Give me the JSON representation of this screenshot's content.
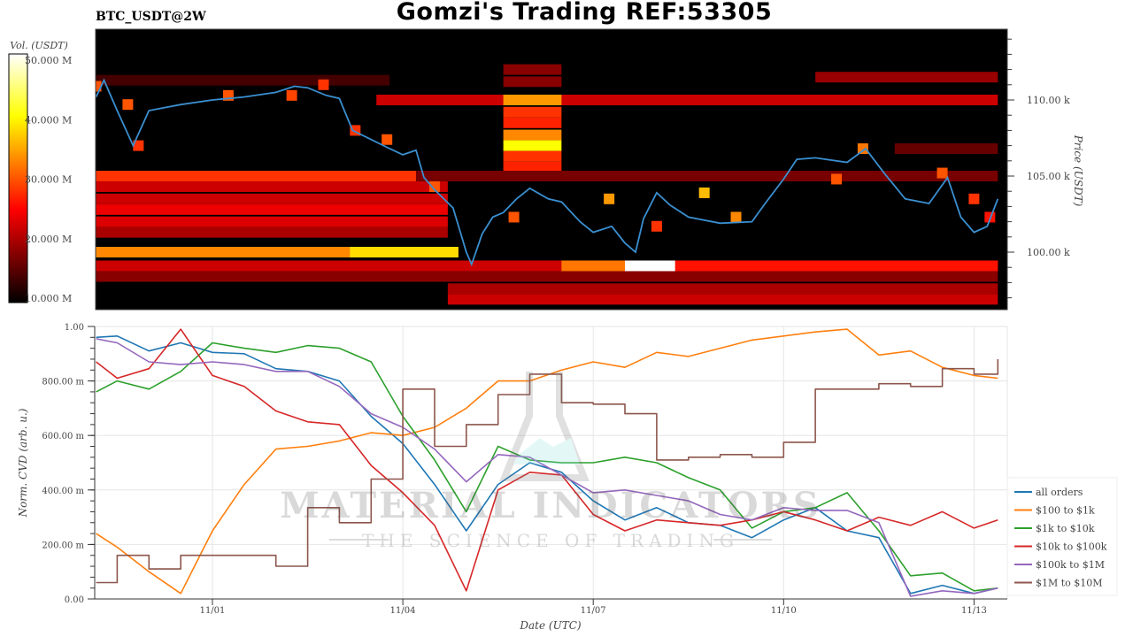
{
  "header": {
    "title": "Gomzi's Trading REF:53305",
    "subtitle": "BTC_USDT@2W"
  },
  "watermark": {
    "line1": "MATERIAL INDICATORS",
    "line2": "THE SCIENCE OF TRADING"
  },
  "chart_data": [
    {
      "type": "heatmap",
      "title": "BTC_USDT@2W",
      "ylabel": "Price (USDT)",
      "yticks": [
        "100.00 k",
        "105.00 k",
        "110.00 k"
      ],
      "ytick_values": [
        100,
        105,
        110
      ],
      "ylim": [
        96.2,
        114.6
      ],
      "colorbar": {
        "label": "Vol. (USDT)",
        "ticks": [
          "10.000 M",
          "20.000 M",
          "30.000 M",
          "40.000 M",
          "50.000 M"
        ],
        "tick_values": [
          10,
          20,
          30,
          40,
          50
        ],
        "range": [
          10,
          50
        ],
        "colormap": "hot"
      },
      "price_line": {
        "color": "#3a8fd0",
        "points": [
          [
            "10/30 04",
            110.2
          ],
          [
            "10/30 07",
            111.3
          ],
          [
            "10/30 12",
            109.3
          ],
          [
            "10/30 18",
            107.0
          ],
          [
            "10/31 00",
            109.3
          ],
          [
            "10/31 12",
            109.7
          ],
          [
            "11/01 00",
            110.0
          ],
          [
            "11/01 12",
            110.2
          ],
          [
            "11/02 00",
            110.5
          ],
          [
            "11/02 07",
            110.9
          ],
          [
            "11/02 12",
            110.8
          ],
          [
            "11/02 19",
            110.3
          ],
          [
            "11/03 00",
            110.1
          ],
          [
            "11/03 05",
            108.0
          ],
          [
            "11/03 12",
            107.4
          ],
          [
            "11/03 19",
            106.8
          ],
          [
            "11/04 00",
            106.4
          ],
          [
            "11/04 05",
            106.7
          ],
          [
            "11/04 08",
            104.9
          ],
          [
            "11/04 12",
            104.1
          ],
          [
            "11/04 19",
            102.9
          ],
          [
            "11/05 00",
            100.0
          ],
          [
            "11/05 02",
            99.2
          ],
          [
            "11/05 06",
            101.2
          ],
          [
            "11/05 10",
            102.3
          ],
          [
            "11/05 14",
            102.6
          ],
          [
            "11/05 19",
            103.5
          ],
          [
            "11/06 00",
            104.2
          ],
          [
            "11/06 07",
            103.5
          ],
          [
            "11/06 12",
            103.3
          ],
          [
            "11/06 19",
            102.0
          ],
          [
            "11/07 00",
            101.3
          ],
          [
            "11/07 07",
            101.7
          ],
          [
            "11/07 12",
            100.6
          ],
          [
            "11/07 16",
            100.0
          ],
          [
            "11/07 19",
            102.2
          ],
          [
            "11/08 00",
            103.9
          ],
          [
            "11/08 05",
            103.1
          ],
          [
            "11/08 12",
            102.3
          ],
          [
            "11/09 00",
            101.9
          ],
          [
            "11/09 12",
            102.0
          ],
          [
            "11/09 17",
            103.2
          ],
          [
            "11/10 00",
            104.8
          ],
          [
            "11/10 05",
            106.1
          ],
          [
            "11/10 12",
            106.2
          ],
          [
            "11/11 00",
            105.9
          ],
          [
            "11/11 07",
            106.8
          ],
          [
            "11/11 14",
            105.2
          ],
          [
            "11/11 22",
            103.5
          ],
          [
            "11/12 07",
            103.2
          ],
          [
            "11/12 14",
            104.9
          ],
          [
            "11/12 19",
            102.3
          ],
          [
            "11/13 00",
            101.3
          ],
          [
            "11/13 05",
            101.7
          ],
          [
            "11/13 09",
            103.5
          ]
        ]
      },
      "bands": [
        [
          111.3,
          "10/30 04",
          "11/03 19",
          14
        ],
        [
          110.0,
          "11/03 14",
          "11/13 09",
          22
        ],
        [
          110.0,
          "11/05 14",
          "11/06 12",
          34
        ],
        [
          112.0,
          "11/05 14",
          "11/06 12",
          18
        ],
        [
          111.2,
          "11/05 14",
          "11/06 12",
          18
        ],
        [
          109.2,
          "11/05 14",
          "11/06 12",
          28
        ],
        [
          108.5,
          "11/05 14",
          "11/06 12",
          27
        ],
        [
          107.7,
          "11/05 14",
          "11/06 12",
          33
        ],
        [
          107.0,
          "11/05 14",
          "11/06 12",
          40
        ],
        [
          106.3,
          "11/05 14",
          "11/06 12",
          28
        ],
        [
          105.6,
          "11/05 14",
          "11/06 12",
          27
        ],
        [
          105.0,
          "10/30 04",
          "11/04 05",
          28
        ],
        [
          105.0,
          "11/04 05",
          "11/13 09",
          17
        ],
        [
          104.3,
          "10/30 04",
          "11/04 17",
          22
        ],
        [
          103.5,
          "10/30 04",
          "11/04 17",
          22
        ],
        [
          102.8,
          "10/30 04",
          "11/04 17",
          24
        ],
        [
          102.0,
          "10/30 04",
          "11/04 17",
          23
        ],
        [
          101.3,
          "10/30 04",
          "11/04 17",
          20
        ],
        [
          100.0,
          "10/30 04",
          "11/04 21",
          33
        ],
        [
          100.0,
          "11/03 04",
          "11/04 21",
          38
        ],
        [
          99.1,
          "10/30 04",
          "11/13 09",
          22
        ],
        [
          99.1,
          "11/06 12",
          "11/07 12",
          32
        ],
        [
          99.1,
          "11/07 12",
          "11/08 07",
          52
        ],
        [
          99.1,
          "11/08 07",
          "11/13 09",
          26
        ],
        [
          98.4,
          "10/30 04",
          "11/13 09",
          18
        ],
        [
          97.6,
          "11/04 17",
          "11/13 09",
          20
        ],
        [
          96.9,
          "11/04 17",
          "11/13 09",
          22
        ],
        [
          111.5,
          "11/10 12",
          "11/13 09",
          19
        ],
        [
          106.8,
          "11/11 18",
          "11/13 09",
          16
        ]
      ],
      "hotspots": [
        [
          110.9,
          "10/30 04",
          30
        ],
        [
          109.7,
          "10/30 16",
          30
        ],
        [
          107.0,
          "10/30 20",
          28
        ],
        [
          110.3,
          "11/01 06",
          30
        ],
        [
          110.3,
          "11/02 06",
          29
        ],
        [
          111.0,
          "11/02 18",
          28
        ],
        [
          108.0,
          "11/03 06",
          28
        ],
        [
          107.4,
          "11/03 18",
          30
        ],
        [
          104.3,
          "11/04 12",
          30
        ],
        [
          102.3,
          "11/05 18",
          30
        ],
        [
          103.5,
          "11/07 06",
          34
        ],
        [
          101.7,
          "11/08 00",
          28
        ],
        [
          103.9,
          "11/08 18",
          36
        ],
        [
          102.3,
          "11/09 06",
          33
        ],
        [
          104.8,
          "11/10 20",
          30
        ],
        [
          106.8,
          "11/11 06",
          32
        ],
        [
          105.2,
          "11/12 12",
          30
        ],
        [
          103.5,
          "11/13 00",
          28
        ],
        [
          102.3,
          "11/13 06",
          26
        ]
      ]
    },
    {
      "type": "line",
      "xlabel": "Date (UTC)",
      "ylabel": "Norm. CVD (arb. u.)",
      "xticks": [
        "11/01",
        "11/04",
        "11/07",
        "11/10",
        "11/13"
      ],
      "xtick_values": [
        "11/01 00",
        "11/04 00",
        "11/07 00",
        "11/10 00",
        "11/13 00"
      ],
      "yticks": [
        "0.00",
        "200.00 m",
        "400.00 m",
        "600.00 m",
        "800.00 m",
        "1.00"
      ],
      "ytick_values": [
        0,
        0.2,
        0.4,
        0.6,
        0.8,
        1.0
      ],
      "ylim": [
        0,
        1
      ],
      "grid": true,
      "legend_position": "bottom-right",
      "x": [
        "10/30 04",
        "10/30 12",
        "10/31 00",
        "10/31 12",
        "11/01 00",
        "11/01 12",
        "11/02 00",
        "11/02 12",
        "11/03 00",
        "11/03 12",
        "11/04 00",
        "11/04 12",
        "11/05 00",
        "11/05 12",
        "11/06 00",
        "11/06 12",
        "11/07 00",
        "11/07 12",
        "11/08 00",
        "11/08 12",
        "11/09 00",
        "11/09 12",
        "11/10 00",
        "11/10 12",
        "11/11 00",
        "11/11 12",
        "11/12 00",
        "11/12 12",
        "11/13 00",
        "11/13 09"
      ],
      "series": [
        {
          "name": "all orders",
          "color": "#1f77b4",
          "values": [
            0.96,
            0.965,
            0.91,
            0.94,
            0.905,
            0.9,
            0.845,
            0.835,
            0.8,
            0.67,
            0.57,
            0.42,
            0.25,
            0.42,
            0.5,
            0.465,
            0.36,
            0.29,
            0.335,
            0.28,
            0.27,
            0.225,
            0.29,
            0.335,
            0.25,
            0.225,
            0.02,
            0.05,
            0.02,
            0.04
          ]
        },
        {
          "name": "$100 to $1k",
          "color": "#ff7f0e",
          "values": [
            0.24,
            0.19,
            0.1,
            0.02,
            0.25,
            0.42,
            0.55,
            0.56,
            0.58,
            0.61,
            0.6,
            0.63,
            0.7,
            0.8,
            0.8,
            0.84,
            0.87,
            0.85,
            0.905,
            0.89,
            0.92,
            0.95,
            0.965,
            0.98,
            0.99,
            0.895,
            0.91,
            0.85,
            0.82,
            0.81
          ]
        },
        {
          "name": "$1k to $10k",
          "color": "#2ca02c",
          "values": [
            0.76,
            0.8,
            0.77,
            0.835,
            0.94,
            0.92,
            0.905,
            0.93,
            0.92,
            0.87,
            0.67,
            0.51,
            0.32,
            0.56,
            0.51,
            0.5,
            0.5,
            0.52,
            0.5,
            0.445,
            0.4,
            0.26,
            0.32,
            0.335,
            0.39,
            0.25,
            0.085,
            0.095,
            0.03,
            0.04
          ]
        },
        {
          "name": "$10k to $100k",
          "color": "#d62728",
          "values": [
            0.87,
            0.81,
            0.845,
            0.99,
            0.82,
            0.78,
            0.69,
            0.65,
            0.64,
            0.49,
            0.39,
            0.27,
            0.03,
            0.4,
            0.465,
            0.455,
            0.31,
            0.25,
            0.29,
            0.28,
            0.27,
            0.29,
            0.32,
            0.29,
            0.25,
            0.3,
            0.27,
            0.32,
            0.26,
            0.29
          ]
        },
        {
          "name": "$100k to $1M",
          "color": "#9467bd",
          "values": [
            0.955,
            0.94,
            0.87,
            0.86,
            0.87,
            0.86,
            0.835,
            0.835,
            0.78,
            0.68,
            0.63,
            0.55,
            0.43,
            0.53,
            0.52,
            0.455,
            0.39,
            0.4,
            0.38,
            0.36,
            0.31,
            0.29,
            0.335,
            0.325,
            0.325,
            0.28,
            0.01,
            0.03,
            0.02,
            0.04
          ]
        },
        {
          "name": "$1M to $10M",
          "color": "#8c564b",
          "step": true,
          "values": [
            0.06,
            0.16,
            0.11,
            0.16,
            0.16,
            0.16,
            0.12,
            0.335,
            0.28,
            0.44,
            0.77,
            0.56,
            0.64,
            0.75,
            0.825,
            0.72,
            0.715,
            0.68,
            0.51,
            0.52,
            0.53,
            0.52,
            0.575,
            0.77,
            0.77,
            0.79,
            0.78,
            0.845,
            0.825,
            0.88
          ]
        }
      ]
    }
  ]
}
